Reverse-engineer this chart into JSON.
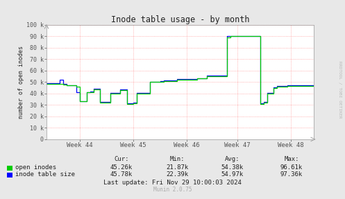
{
  "title": "Inode table usage - by month",
  "ylabel": "number of open inodes",
  "background_color": "#e8e8e8",
  "plot_bg_color": "#ffffff",
  "grid_color": "#ff9999",
  "ytick_labels": [
    "0",
    "10 k",
    "20 k",
    "30 k",
    "40 k",
    "50 k",
    "60 k",
    "70 k",
    "80 k",
    "90 k",
    "100 k"
  ],
  "ytick_vals": [
    0,
    10000,
    20000,
    30000,
    40000,
    50000,
    60000,
    70000,
    80000,
    90000,
    100000
  ],
  "ylim": [
    0,
    100000
  ],
  "xtick_labels": [
    "Week 44",
    "Week 45",
    "Week 46",
    "Week 47",
    "Week 48"
  ],
  "xtick_positions": [
    10,
    26,
    42,
    57,
    73
  ],
  "xmin": 0,
  "xmax": 80,
  "legend": [
    {
      "label": "open inodes",
      "color": "#00cc00"
    },
    {
      "label": "inode table size",
      "color": "#0000ff"
    }
  ],
  "stats_header": [
    "Cur:",
    "Min:",
    "Avg:",
    "Max:"
  ],
  "stats_open": [
    "45.26k",
    "21.87k",
    "54.38k",
    "96.61k"
  ],
  "stats_table": [
    "45.78k",
    "22.39k",
    "54.97k",
    "97.36k"
  ],
  "last_update": "Last update: Fri Nov 29 10:00:03 2024",
  "munin_version": "Munin 2.0.75",
  "rrdtool_label": "RRDTOOL / TOBI OETIKER",
  "open_inodes_x": [
    0,
    1,
    3,
    4,
    5,
    6,
    7,
    8,
    9,
    10,
    11,
    12,
    13,
    14,
    15,
    16,
    17,
    18,
    19,
    20,
    21,
    22,
    23,
    24,
    25,
    26,
    27,
    28,
    29,
    30,
    31,
    32,
    33,
    34,
    35,
    36,
    37,
    38,
    39,
    40,
    41,
    42,
    43,
    44,
    45,
    46,
    47,
    48,
    49,
    50,
    51,
    52,
    53,
    54,
    55,
    56,
    57,
    58,
    59,
    60,
    61,
    62,
    63,
    64,
    65,
    66,
    67,
    68,
    69,
    70,
    71,
    72,
    73,
    74,
    75,
    76,
    77,
    78,
    79,
    80
  ],
  "open_inodes_y": [
    48500,
    48500,
    48500,
    48500,
    48000,
    47500,
    47500,
    47000,
    46000,
    33000,
    33000,
    41000,
    41000,
    43500,
    43500,
    32000,
    32000,
    32000,
    40000,
    40000,
    40000,
    43000,
    43000,
    31000,
    31000,
    31500,
    40000,
    40000,
    40000,
    40000,
    50000,
    50000,
    50000,
    50500,
    51000,
    51000,
    51000,
    51000,
    52000,
    52000,
    52000,
    52000,
    52000,
    52000,
    53000,
    53000,
    53000,
    55000,
    55000,
    55000,
    55000,
    55000,
    55000,
    89000,
    90000,
    90000,
    90000,
    90000,
    90000,
    90000,
    90000,
    90000,
    90000,
    31000,
    32000,
    40000,
    40000,
    45000,
    46000,
    46000,
    46000,
    46500,
    46500,
    46500,
    46500,
    46500,
    46500,
    46500,
    46500,
    46500
  ],
  "table_size_x": [
    0,
    1,
    3,
    4,
    5,
    6,
    7,
    8,
    9,
    10,
    11,
    12,
    13,
    14,
    15,
    16,
    17,
    18,
    19,
    20,
    21,
    22,
    23,
    24,
    25,
    26,
    27,
    28,
    29,
    30,
    31,
    32,
    33,
    34,
    35,
    36,
    37,
    38,
    39,
    40,
    41,
    42,
    43,
    44,
    45,
    46,
    47,
    48,
    49,
    50,
    51,
    52,
    53,
    54,
    55,
    56,
    57,
    58,
    59,
    60,
    61,
    62,
    63,
    64,
    65,
    66,
    67,
    68,
    69,
    70,
    71,
    72,
    73,
    74,
    75,
    76,
    77,
    78,
    79,
    80
  ],
  "table_size_y": [
    49000,
    49000,
    49000,
    52000,
    48500,
    47500,
    47500,
    47000,
    41000,
    33500,
    33500,
    41000,
    41500,
    44000,
    44000,
    32500,
    32500,
    32500,
    40500,
    40500,
    40500,
    43500,
    43500,
    31500,
    31500,
    32000,
    40500,
    40500,
    40500,
    40500,
    50500,
    50500,
    50500,
    51000,
    51500,
    51500,
    51500,
    51500,
    52500,
    52500,
    52500,
    52500,
    52500,
    52500,
    53500,
    53500,
    53500,
    55500,
    55500,
    55500,
    55500,
    55500,
    55500,
    90000,
    90500,
    90500,
    90500,
    90500,
    90500,
    90500,
    90500,
    90500,
    90500,
    31500,
    32500,
    40500,
    40500,
    45500,
    46500,
    46500,
    46500,
    47000,
    47000,
    47000,
    47000,
    47000,
    47000,
    47000,
    47000,
    47000
  ]
}
